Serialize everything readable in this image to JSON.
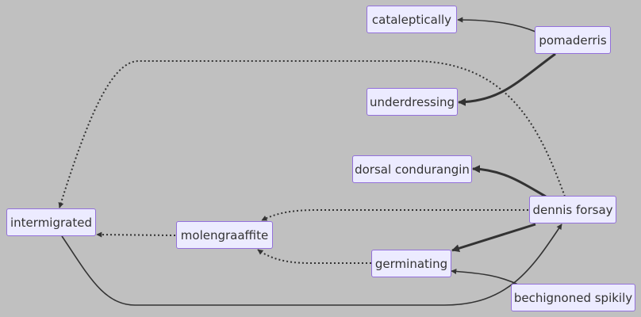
{
  "diagram": {
    "type": "flowchart",
    "direction": "RL",
    "node_color": "#ecebff",
    "node_border_color": "#9370db",
    "edge_color": "#333333",
    "nodes": {
      "catal": "cataleptically",
      "pomad": "pomaderris",
      "under": "underdressing",
      "dorsal": "dorsal condurangin",
      "dennis": "dennis forsay",
      "inter": "intermigrated",
      "molen": "molengraaffite",
      "germ": "germinating",
      "bech": "bechignoned spikily"
    },
    "edges": [
      {
        "from": "pomaderris",
        "to": "cataleptically",
        "style": "normal"
      },
      {
        "from": "pomaderris",
        "to": "underdressing",
        "style": "thick"
      },
      {
        "from": "dennis forsay",
        "to": "intermigrated",
        "style": "dotted"
      },
      {
        "from": "dennis forsay",
        "to": "dorsal condurangin",
        "style": "thick"
      },
      {
        "from": "dennis forsay",
        "to": "molengraaffite",
        "style": "dotted"
      },
      {
        "from": "dennis forsay",
        "to": "germinating",
        "style": "thick"
      },
      {
        "from": "molengraaffite",
        "to": "intermigrated",
        "style": "dotted"
      },
      {
        "from": "germinating",
        "to": "molengraaffite",
        "style": "dotted"
      },
      {
        "from": "bechignoned spikily",
        "to": "germinating",
        "style": "normal"
      },
      {
        "from": "intermigrated",
        "to": "dennis forsay",
        "style": "normal"
      }
    ]
  }
}
